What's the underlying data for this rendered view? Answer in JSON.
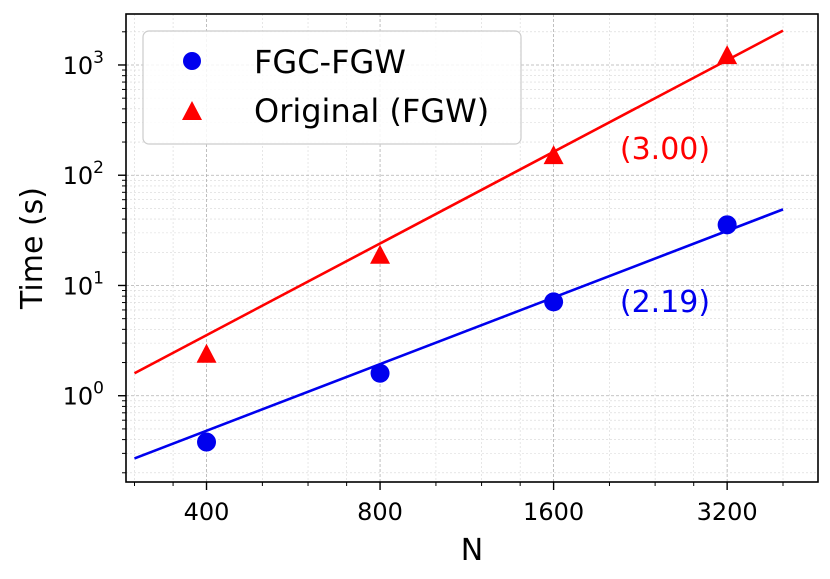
{
  "chart_data": {
    "type": "line",
    "xlabel": "N",
    "ylabel": "Time (s)",
    "xscale": "log2",
    "yscale": "log10",
    "x_ticks": [
      400,
      800,
      1600,
      3200
    ],
    "x_tick_labels": [
      "400",
      "800",
      "1600",
      "3200"
    ],
    "y_ticks": [
      1,
      10,
      100,
      1000
    ],
    "y_tick_labels": [
      {
        "base": "10",
        "exp": "0"
      },
      {
        "base": "10",
        "exp": "1"
      },
      {
        "base": "10",
        "exp": "2"
      },
      {
        "base": "10",
        "exp": "3"
      }
    ],
    "xlim": [
      290,
      4600
    ],
    "ylim": [
      0.165,
      2900
    ],
    "grid": true,
    "legend_position": "top-left",
    "series": [
      {
        "name": "FGC-FGW",
        "color": "#0000ee",
        "marker": "circle",
        "x": [
          400,
          800,
          1600,
          3200
        ],
        "y": [
          0.38,
          1.6,
          7.1,
          35.5
        ],
        "fit_x": [
          300,
          4000
        ],
        "fit_y": [
          0.27,
          49
        ],
        "slope_label": "(2.19)"
      },
      {
        "name": "Original (FGW)",
        "color": "#ff0000",
        "marker": "triangle",
        "x": [
          400,
          800,
          1600,
          3200
        ],
        "y": [
          2.4,
          19,
          152,
          1230
        ],
        "fit_x": [
          300,
          4000
        ],
        "fit_y": [
          1.6,
          2050
        ],
        "slope_label": "(3.00)"
      }
    ]
  }
}
